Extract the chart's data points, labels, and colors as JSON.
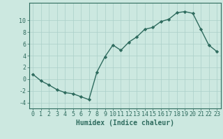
{
  "x": [
    0,
    1,
    2,
    3,
    4,
    5,
    6,
    7,
    8,
    9,
    10,
    11,
    12,
    13,
    14,
    15,
    16,
    17,
    18,
    19,
    20,
    21,
    22,
    23
  ],
  "y": [
    0.8,
    -0.3,
    -1.0,
    -1.8,
    -2.3,
    -2.5,
    -3.0,
    -3.5,
    1.2,
    3.8,
    5.8,
    4.9,
    6.3,
    7.2,
    8.5,
    8.8,
    9.8,
    10.2,
    11.3,
    11.5,
    11.2,
    8.5,
    5.8,
    4.7
  ],
  "line_color": "#2e6b5e",
  "marker": "D",
  "markersize": 2.2,
  "linewidth": 1.0,
  "bg_color": "#cce8e0",
  "grid_color": "#aacfc8",
  "xlabel": "Humidex (Indice chaleur)",
  "xlabel_fontsize": 7,
  "tick_fontsize": 6,
  "xlim": [
    -0.5,
    23.5
  ],
  "ylim": [
    -5,
    13
  ],
  "yticks": [
    -4,
    -2,
    0,
    2,
    4,
    6,
    8,
    10
  ],
  "xticks": [
    0,
    1,
    2,
    3,
    4,
    5,
    6,
    7,
    8,
    9,
    10,
    11,
    12,
    13,
    14,
    15,
    16,
    17,
    18,
    19,
    20,
    21,
    22,
    23
  ]
}
